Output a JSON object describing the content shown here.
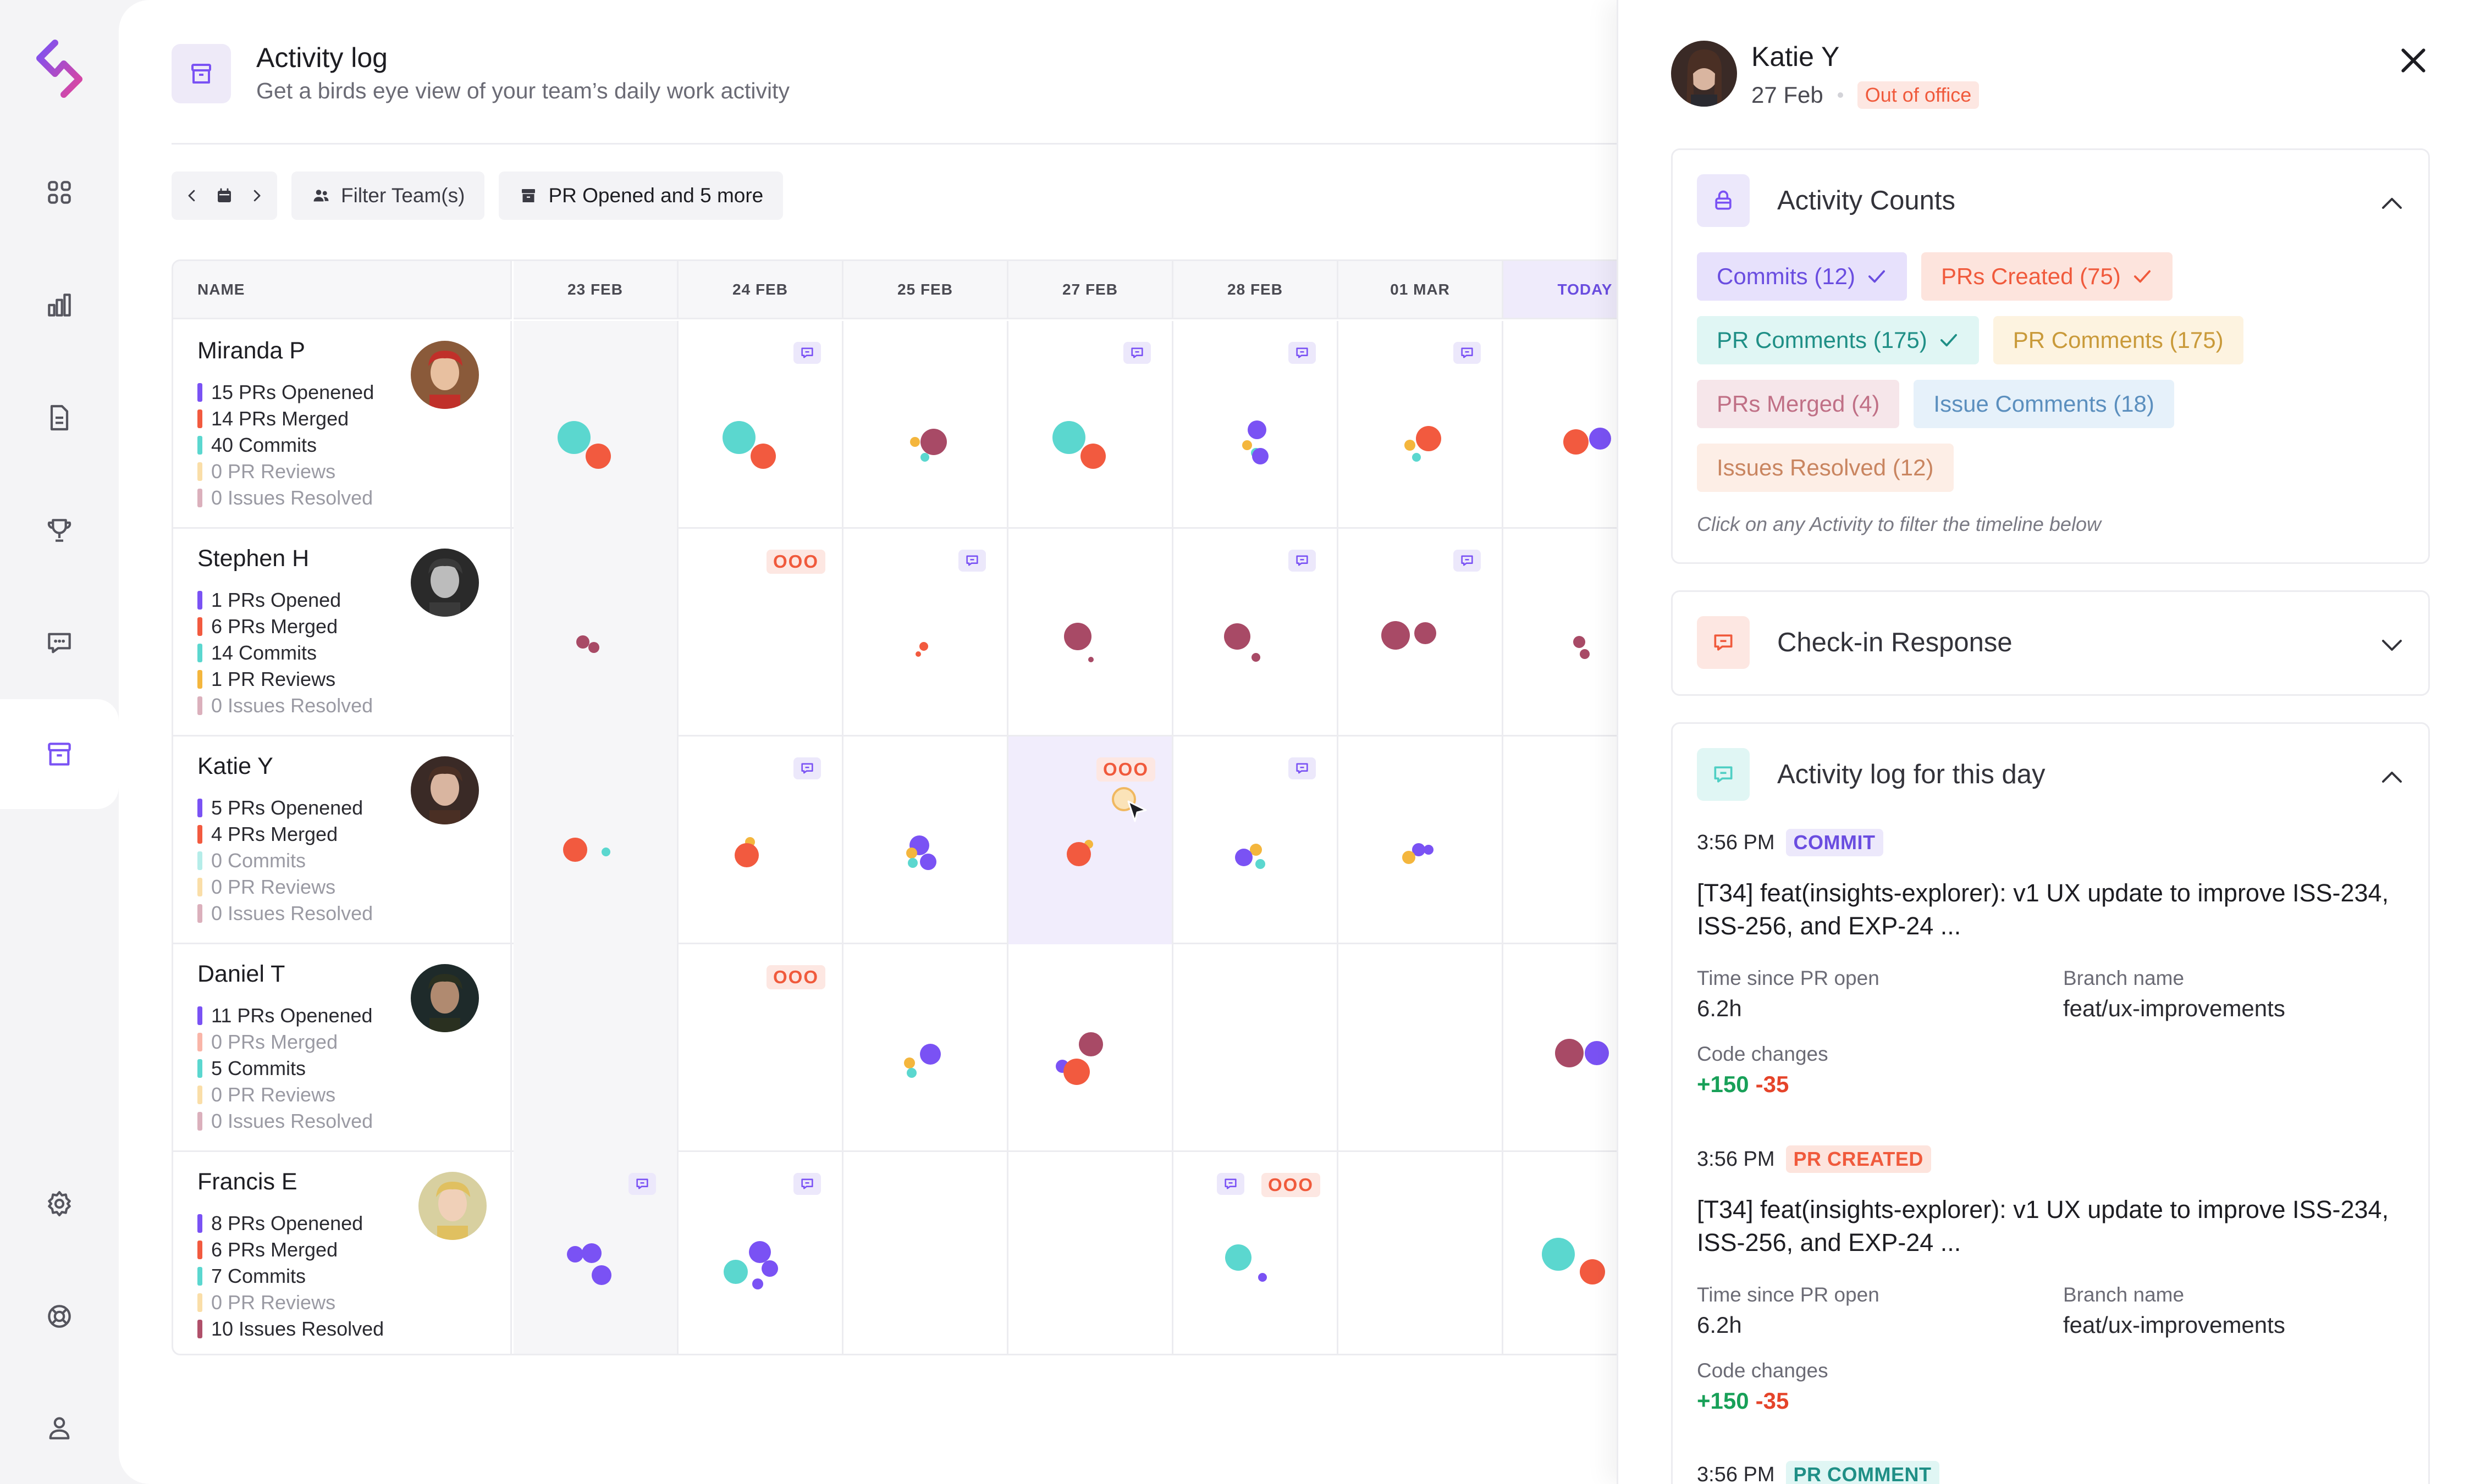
{
  "page": {
    "title": "Activity log",
    "subtitle": "Get a birds eye view of your team’s daily work activity"
  },
  "toolbar": {
    "filter_teams": "Filter Team(s)",
    "activity_filter": "PR Opened and 5 more"
  },
  "grid": {
    "name_header": "NAME",
    "days": [
      "23 FEB",
      "24 FEB",
      "25 FEB",
      "27 FEB",
      "28 FEB",
      "01 MAR",
      "TODAY"
    ],
    "ooo_label": "OOO",
    "colors": {
      "pr_opened": "#7a52f4",
      "pr_merged": "#f25a3f",
      "commits": "#5bd7cf",
      "pr_reviews": "#f4b63d",
      "issues_resolved": "#b0506a",
      "secondary_dot": "#a84a66"
    },
    "people": [
      {
        "name": "Miranda P",
        "stats": [
          "15 PRs Openened",
          "14 PRs Merged",
          "40 Commits",
          "0 PR Reviews",
          "0 Issues Resolved"
        ],
        "zero": [
          false,
          false,
          false,
          true,
          true
        ]
      },
      {
        "name": "Stephen H",
        "stats": [
          "1 PRs Opened",
          "6 PRs Merged",
          "14 Commits",
          "1 PR Reviews",
          "0 Issues Resolved"
        ],
        "zero": [
          false,
          false,
          false,
          false,
          true
        ]
      },
      {
        "name": "Katie Y",
        "stats": [
          "5 PRs Openened",
          "4 PRs Merged",
          "0 Commits",
          "0 PR Reviews",
          "0 Issues Resolved"
        ],
        "zero": [
          false,
          false,
          true,
          true,
          true
        ]
      },
      {
        "name": "Daniel T",
        "stats": [
          "11 PRs Openened",
          "0 PRs Merged",
          "5 Commits",
          "0 PR Reviews",
          "0 Issues Resolved"
        ],
        "zero": [
          false,
          true,
          false,
          true,
          true
        ]
      },
      {
        "name": "Francis E",
        "stats": [
          "8 PRs Openened",
          "6 PRs Merged",
          "7 Commits",
          "0 PR Reviews",
          "10 Issues Resolved"
        ],
        "zero": [
          false,
          false,
          false,
          true,
          false
        ]
      }
    ]
  },
  "drawer": {
    "name": "Katie Y",
    "date": "27 Feb",
    "status": "Out of office",
    "activity_counts": {
      "title": "Activity Counts",
      "chips": [
        {
          "label": "Commits (12)",
          "checked": true
        },
        {
          "label": "PRs Created (75)",
          "checked": true
        },
        {
          "label": "PR Comments (175)",
          "checked": true
        },
        {
          "label": "PR Comments (175)",
          "checked": false
        },
        {
          "label": "PRs Merged (4)",
          "checked": false
        },
        {
          "label": "Issue Comments (18)",
          "checked": false
        },
        {
          "label": "Issues Resolved (12)",
          "checked": false
        }
      ],
      "hint": "Click on any Activity to filter the timeline below"
    },
    "checkin": {
      "title": "Check-in Response"
    },
    "daylog": {
      "title": "Activity log for this day",
      "entries": [
        {
          "time": "3:56 PM",
          "tag": "COMMIT",
          "title": "[T34] feat(insights-explorer): v1 UX update to improve ISS-234, ISS-256, and EXP-24 ...",
          "k1": "Time since PR open",
          "v1": "6.2h",
          "k2": "Branch name",
          "v2": "feat/ux-improvements",
          "k3": "Code changes",
          "plus": "+150",
          "minus": "-35"
        },
        {
          "time": "3:56 PM",
          "tag": "PR CREATED",
          "title": "[T34] feat(insights-explorer): v1 UX update to improve ISS-234, ISS-256, and EXP-24 ...",
          "k1": "Time since PR open",
          "v1": "6.2h",
          "k2": "Branch name",
          "v2": "feat/ux-improvements",
          "k3": "Code changes",
          "plus": "+150",
          "minus": "-35"
        },
        {
          "time": "3:56 PM",
          "tag": "PR COMMENT"
        }
      ]
    }
  }
}
